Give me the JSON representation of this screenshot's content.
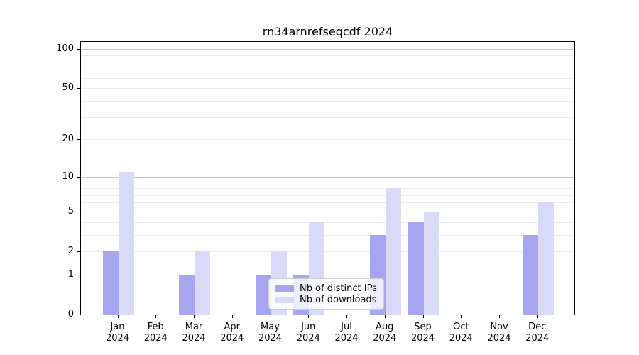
{
  "title": "rn34arnrefseqcdf 2024",
  "chart_data": {
    "type": "bar",
    "title": "rn34arnrefseqcdf 2024",
    "yscale": "log(1+y)",
    "ylim": [
      0,
      116
    ],
    "grid": "horizontal, minor + major (major at 1, 10, 100)",
    "legend_position": "lower center (inside plot, semi-transparent)",
    "categories": [
      {
        "month": "Jan",
        "year": "2024"
      },
      {
        "month": "Feb",
        "year": "2024"
      },
      {
        "month": "Mar",
        "year": "2024"
      },
      {
        "month": "Apr",
        "year": "2024"
      },
      {
        "month": "May",
        "year": "2024"
      },
      {
        "month": "Jun",
        "year": "2024"
      },
      {
        "month": "Jul",
        "year": "2024"
      },
      {
        "month": "Aug",
        "year": "2024"
      },
      {
        "month": "Sep",
        "year": "2024"
      },
      {
        "month": "Oct",
        "year": "2024"
      },
      {
        "month": "Nov",
        "year": "2024"
      },
      {
        "month": "Dec",
        "year": "2024"
      }
    ],
    "series": [
      {
        "name": "Nb of distinct IPs",
        "color": "#a5a5f0",
        "values": [
          2,
          0,
          1,
          0,
          1,
          1,
          0,
          3,
          4,
          0,
          0,
          3
        ]
      },
      {
        "name": "Nb of downloads",
        "color": "#d9d9f8",
        "values": [
          11,
          0,
          2,
          0,
          2,
          4,
          0,
          8,
          5,
          0,
          0,
          6
        ]
      }
    ],
    "y_tick_labels": [
      "0",
      "1",
      "2",
      "5",
      "10",
      "20",
      "50",
      "100"
    ],
    "y_tick_values": [
      0,
      1,
      2,
      5,
      10,
      20,
      50,
      100
    ],
    "y_major_gridlines": [
      1,
      10,
      100
    ],
    "y_minor_gridlines": [
      2,
      3,
      4,
      5,
      6,
      7,
      8,
      9,
      20,
      30,
      40,
      50,
      60,
      70,
      80,
      90
    ]
  },
  "colors": {
    "bar_distinct_ips": "#a5a5f0",
    "bar_downloads": "#d9d9f8",
    "grid_major": "#c2c2c2",
    "grid_minor": "#ececec",
    "axis": "#000000",
    "legend_border": "#cccccc"
  }
}
